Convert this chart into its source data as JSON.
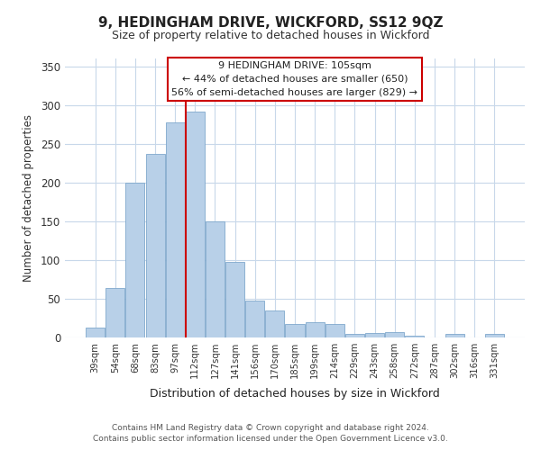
{
  "title": "9, HEDINGHAM DRIVE, WICKFORD, SS12 9QZ",
  "subtitle": "Size of property relative to detached houses in Wickford",
  "xlabel": "Distribution of detached houses by size in Wickford",
  "ylabel": "Number of detached properties",
  "bar_labels": [
    "39sqm",
    "54sqm",
    "68sqm",
    "83sqm",
    "97sqm",
    "112sqm",
    "127sqm",
    "141sqm",
    "156sqm",
    "170sqm",
    "185sqm",
    "199sqm",
    "214sqm",
    "229sqm",
    "243sqm",
    "258sqm",
    "272sqm",
    "287sqm",
    "302sqm",
    "316sqm",
    "331sqm"
  ],
  "bar_values": [
    13,
    64,
    200,
    237,
    278,
    291,
    150,
    98,
    48,
    35,
    18,
    20,
    18,
    5,
    6,
    7,
    2,
    0,
    5,
    0,
    5
  ],
  "bar_color": "#b8d0e8",
  "bar_edge_color": "#7fa8cc",
  "vline_color": "#cc0000",
  "vline_x_index": 5,
  "ylim": [
    0,
    360
  ],
  "yticks": [
    0,
    50,
    100,
    150,
    200,
    250,
    300,
    350
  ],
  "annotation_title": "9 HEDINGHAM DRIVE: 105sqm",
  "annotation_line1": "← 44% of detached houses are smaller (650)",
  "annotation_line2": "56% of semi-detached houses are larger (829) →",
  "footnote1": "Contains HM Land Registry data © Crown copyright and database right 2024.",
  "footnote2": "Contains public sector information licensed under the Open Government Licence v3.0.",
  "background_color": "#ffffff",
  "grid_color": "#c8d8ea"
}
